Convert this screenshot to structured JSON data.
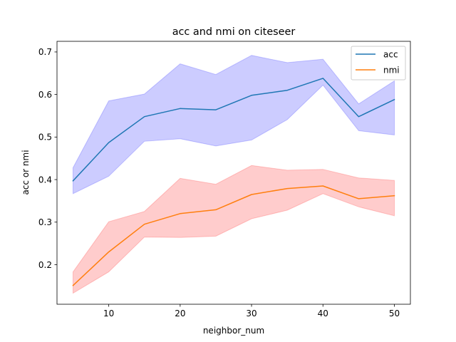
{
  "chart_data": {
    "type": "line",
    "title": "acc and nmi on citeseer",
    "xlabel": "neighbor_num",
    "ylabel": "acc or nmi",
    "xlim": [
      2.75,
      52.25
    ],
    "ylim": [
      0.107,
      0.725
    ],
    "xticks": [
      10,
      20,
      30,
      40,
      50
    ],
    "yticks": [
      0.2,
      0.3,
      0.4,
      0.5,
      0.6,
      0.7
    ],
    "grid": false,
    "legend_position": "top-right",
    "x": [
      5,
      10,
      15,
      20,
      25,
      30,
      35,
      40,
      45,
      50
    ],
    "series": [
      {
        "name": "acc",
        "color": "#1f77b4",
        "band_color": "#0000ff",
        "values": [
          0.397,
          0.487,
          0.548,
          0.567,
          0.564,
          0.598,
          0.61,
          0.638,
          0.548,
          0.588
        ],
        "upper": [
          0.428,
          0.585,
          0.601,
          0.672,
          0.647,
          0.692,
          0.675,
          0.683,
          0.578,
          0.632
        ],
        "lower": [
          0.367,
          0.408,
          0.49,
          0.496,
          0.479,
          0.493,
          0.541,
          0.622,
          0.515,
          0.505
        ]
      },
      {
        "name": "nmi",
        "color": "#ff7f0e",
        "band_color": "#ff0000",
        "values": [
          0.151,
          0.23,
          0.295,
          0.32,
          0.329,
          0.365,
          0.379,
          0.385,
          0.355,
          0.362
        ],
        "upper": [
          0.183,
          0.301,
          0.325,
          0.403,
          0.389,
          0.433,
          0.422,
          0.424,
          0.404,
          0.398
        ],
        "lower": [
          0.133,
          0.183,
          0.265,
          0.264,
          0.267,
          0.308,
          0.328,
          0.367,
          0.336,
          0.315
        ]
      }
    ]
  }
}
